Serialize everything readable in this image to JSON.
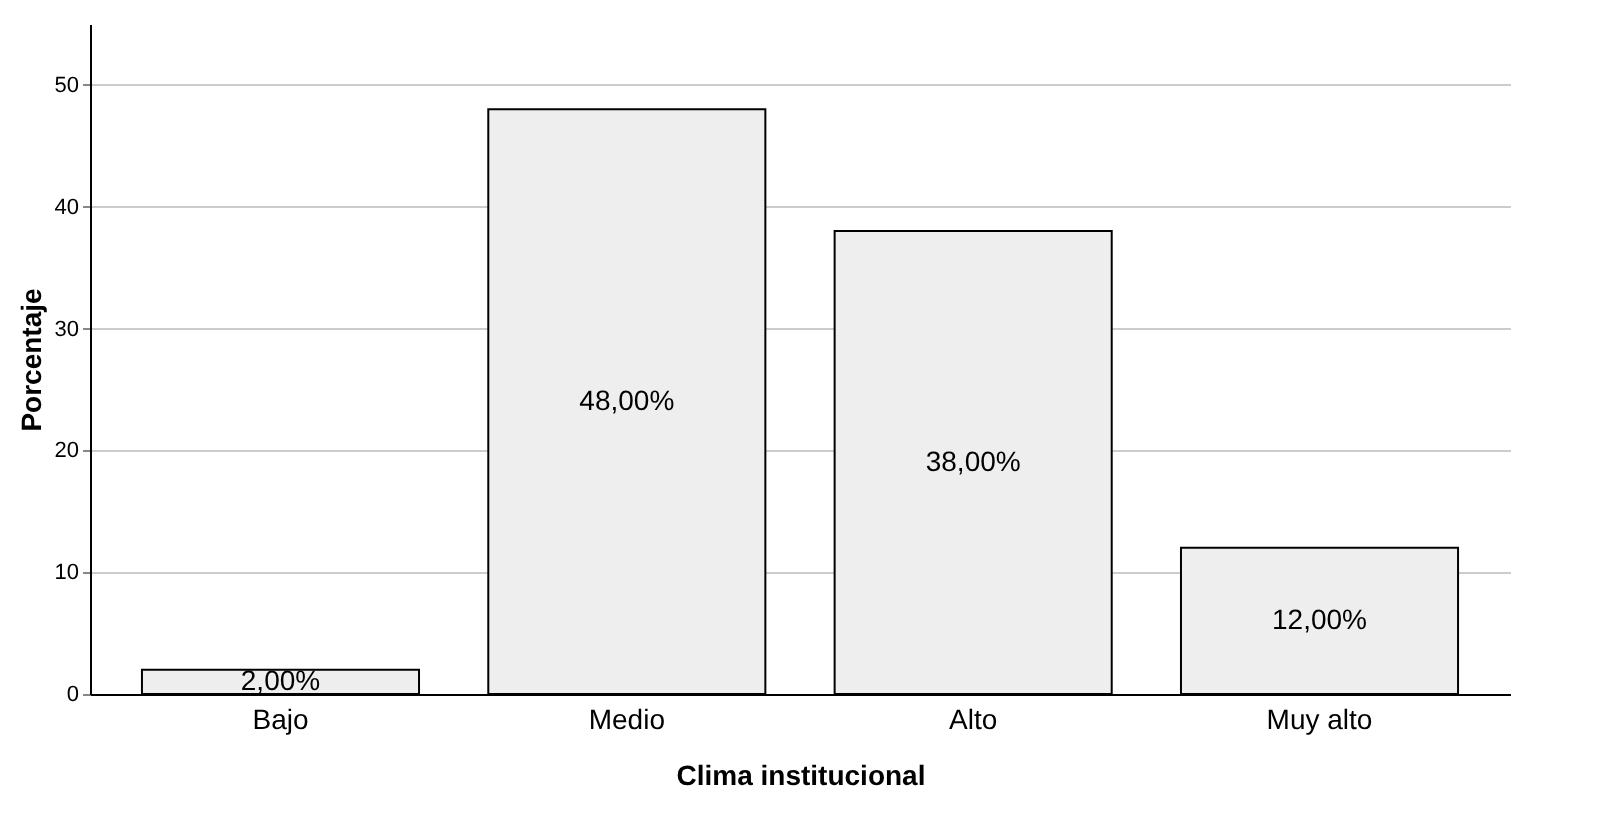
{
  "chart_data": {
    "type": "bar",
    "xlabel": "Clima institucional",
    "ylabel": "Porcentaje",
    "categories": [
      "Bajo",
      "Medio",
      "Alto",
      "Muy alto"
    ],
    "values": [
      2,
      48,
      38,
      12
    ],
    "value_labels": [
      "2,00%",
      "48,00%",
      "38,00%",
      "12,00%"
    ],
    "color": "#eeeeee",
    "ylim": [
      0,
      55
    ],
    "yticks": [
      0,
      10,
      20,
      30,
      40,
      50
    ],
    "grid": "y"
  }
}
